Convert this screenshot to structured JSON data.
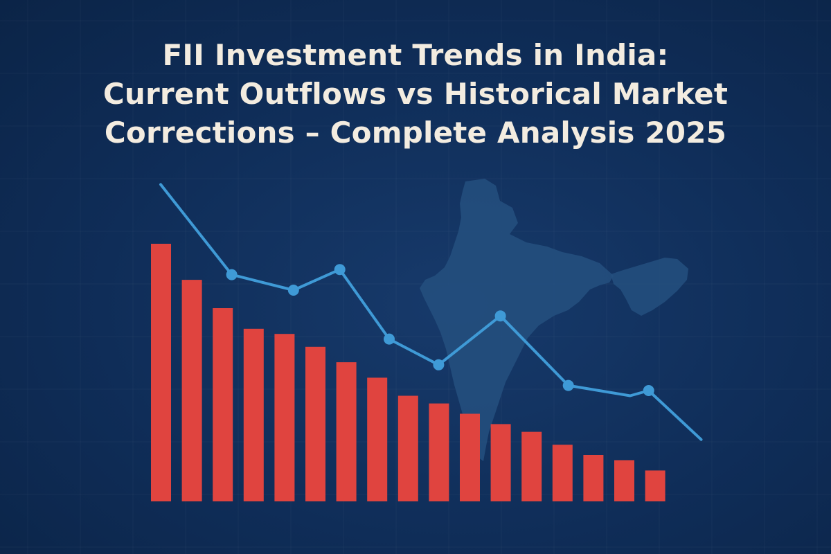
{
  "title": {
    "line1": "FII Investment Trends in India:",
    "line2": "Current Outflows vs Historical Market",
    "line3": "Corrections – Complete Analysis 2025"
  },
  "colors": {
    "background": "#0f2d58",
    "bar": "#e0443f",
    "line": "#3f9ad6",
    "map": "#24507f",
    "title": "#f3ece0"
  },
  "chart_data": {
    "type": "bar",
    "title": "FII Investment Trends in India: Current Outflows vs Historical Market Corrections – Complete Analysis 2025",
    "xlabel": "",
    "ylabel": "",
    "grid": true,
    "legend": "none",
    "ylim": [
      0,
      100
    ],
    "categories": [
      "",
      "",
      "",
      "",
      "",
      "",
      "",
      "",
      "",
      "",
      "",
      "",
      "",
      "",
      "",
      "",
      ""
    ],
    "series": [
      {
        "type": "bar",
        "values": [
          100,
          86,
          75,
          67,
          65,
          60,
          54,
          48,
          41,
          38,
          34,
          30,
          27,
          22,
          18,
          16,
          12
        ]
      },
      {
        "type": "line",
        "x": [
          0,
          2.3,
          4.3,
          5.8,
          7.4,
          9.0,
          11.0,
          13.2,
          15.2,
          15.8,
          17.5
        ],
        "values": [
          123,
          88,
          82,
          90,
          63,
          53,
          72,
          45,
          41,
          43,
          24
        ],
        "markers": [
          false,
          true,
          true,
          true,
          true,
          true,
          true,
          true,
          false,
          true,
          false
        ]
      }
    ]
  }
}
